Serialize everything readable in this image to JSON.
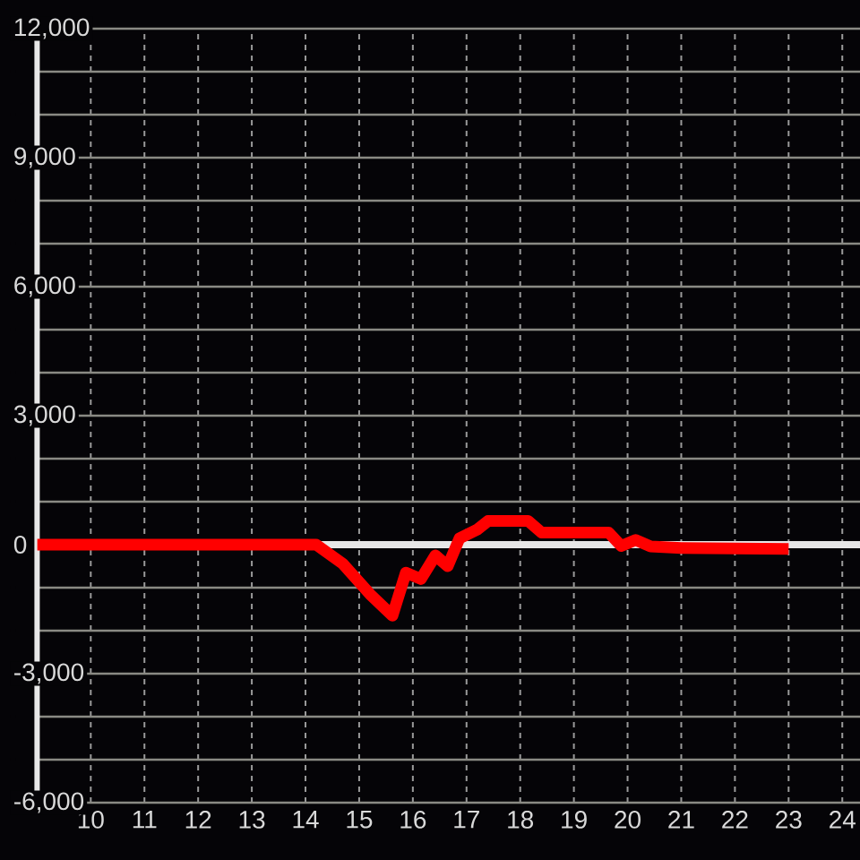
{
  "chart_data": {
    "type": "line",
    "x": [
      9,
      14.2,
      14.7,
      15.2,
      15.62,
      15.87,
      16.15,
      16.42,
      16.65,
      16.87,
      17.2,
      17.4,
      18.15,
      18.4,
      19.65,
      19.88,
      20.15,
      20.43,
      21.0,
      23.0
    ],
    "values": [
      0,
      0,
      -450,
      -1150,
      -1650,
      -650,
      -800,
      -250,
      -500,
      150,
      350,
      550,
      550,
      280,
      280,
      -30,
      110,
      -40,
      -80,
      -100
    ],
    "color": "#ff0000",
    "line_style": "solid",
    "xlim": [
      9,
      24.33
    ],
    "ylim": [
      -6000,
      12000
    ],
    "xticks": [
      10,
      11,
      12,
      13,
      14,
      15,
      16,
      17,
      18,
      19,
      20,
      21,
      22,
      23,
      24
    ],
    "yticks": [
      {
        "value": -6000,
        "label": "-6,000"
      },
      {
        "value": -5000,
        "label": null
      },
      {
        "value": -4000,
        "label": null
      },
      {
        "value": -3000,
        "label": "-3,000"
      },
      {
        "value": -2000,
        "label": null
      },
      {
        "value": -1000,
        "label": null
      },
      0,
      {
        "value": 1000,
        "label": null
      },
      {
        "value": 2000,
        "label": null
      },
      {
        "value": 3000,
        "label": "3,000"
      },
      {
        "value": 4000,
        "label": null
      },
      {
        "value": 5000,
        "label": null
      },
      {
        "value": 6000,
        "label": "6,000"
      },
      {
        "value": 7000,
        "label": null
      },
      {
        "value": 8000,
        "label": null
      },
      {
        "value": 9000,
        "label": "9,000"
      },
      {
        "value": 10000,
        "label": null
      },
      {
        "value": 11000,
        "label": null
      },
      {
        "value": 12000,
        "label": "12,000"
      }
    ],
    "grid": true,
    "ref_lines": [
      {
        "axis": "y",
        "value": 0,
        "color": "#e6e6e6"
      }
    ]
  }
}
